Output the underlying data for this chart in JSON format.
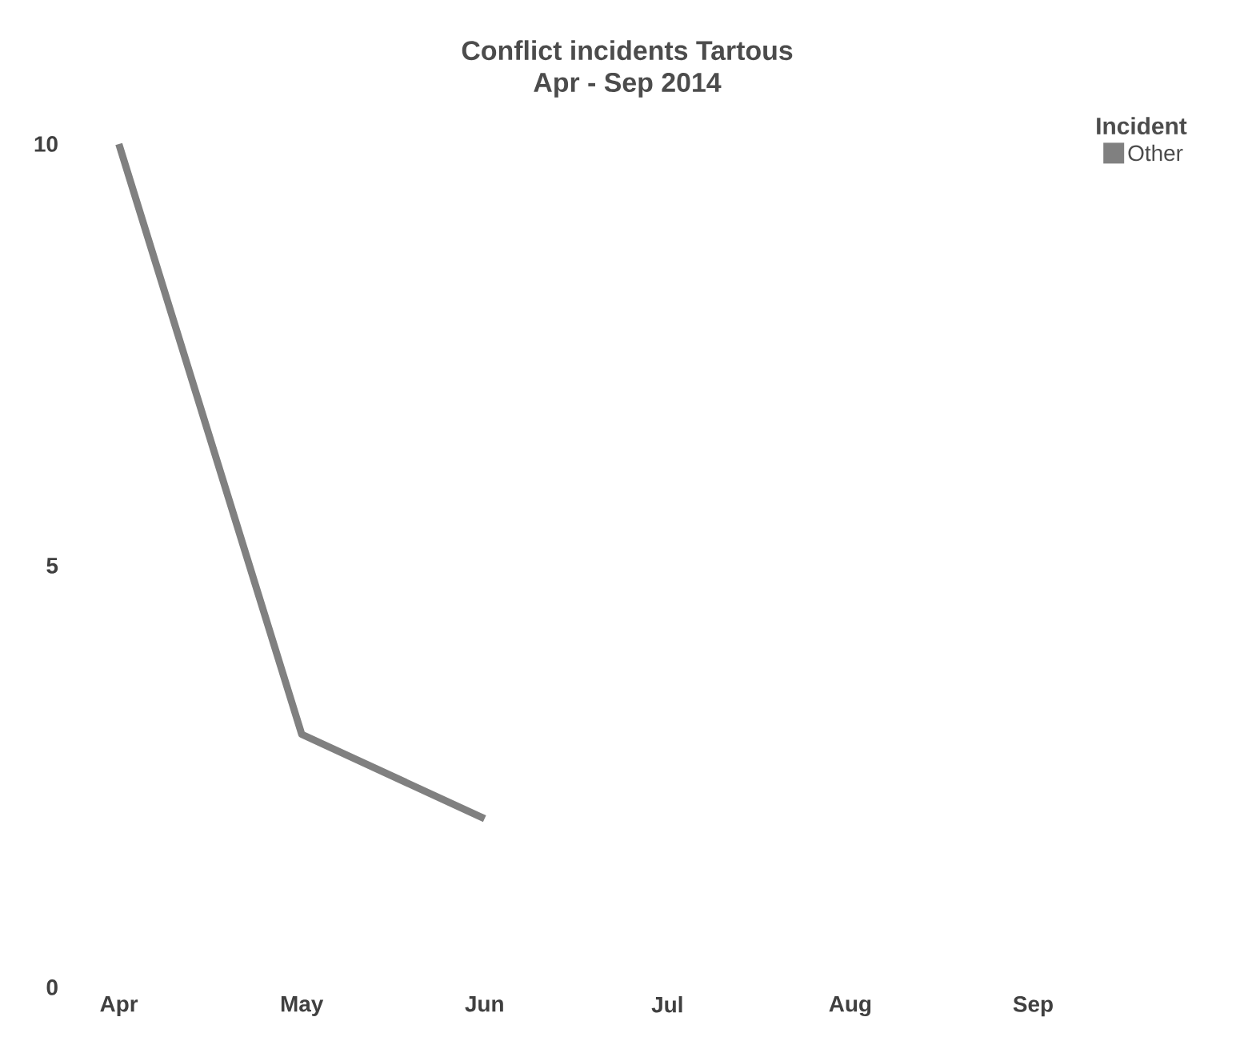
{
  "chart_data": {
    "type": "line",
    "title": "Conflict incidents Tartous",
    "subtitle": "Apr - Sep 2014",
    "categories": [
      "Apr",
      "May",
      "Jun",
      "Jul",
      "Aug",
      "Sep"
    ],
    "series": [
      {
        "name": "Other",
        "color": "#808080",
        "values": [
          10,
          3,
          2,
          null,
          null,
          null
        ]
      }
    ],
    "legend_title": "Incident",
    "legend": "top right",
    "ylim": [
      0,
      10
    ],
    "yticks": [
      0,
      5,
      10
    ],
    "grid": false,
    "marker": "none",
    "line_style": "solid"
  }
}
